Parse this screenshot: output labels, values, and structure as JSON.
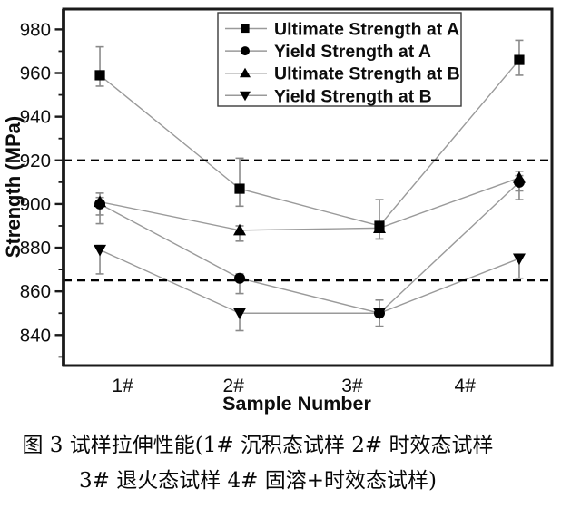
{
  "figure": {
    "caption_line1": "图 3  试样拉伸性能(1# 沉积态试样 2# 时效态试样",
    "caption_line2": "3# 退火态试样 4# 固溶+时效态试样)"
  },
  "chart_data": {
    "type": "line",
    "title": "",
    "xlabel": "Sample Number",
    "ylabel": "Strength (MPa)",
    "categories": [
      "1#",
      "2#",
      "3#",
      "4#"
    ],
    "x": [
      1,
      2,
      3,
      4
    ],
    "xlim": [
      0.74,
      4.234
    ],
    "ylim": [
      826,
      989.3
    ],
    "yticks": [
      840,
      860,
      880,
      900,
      920,
      940,
      960,
      980
    ],
    "y_minor_step": 10,
    "grid": false,
    "legend_position": "top-center-inside",
    "reference_lines": [
      {
        "value": 920,
        "style": "dashed",
        "color": "#000000"
      },
      {
        "value": 865,
        "style": "dashed",
        "color": "#000000"
      }
    ],
    "series": [
      {
        "name": "Ultimate Strength at A",
        "marker": "square",
        "values": [
          959,
          907,
          890,
          966
        ],
        "err_plus": [
          13,
          14,
          12,
          9
        ],
        "err_minus": [
          5,
          8,
          6,
          7
        ]
      },
      {
        "name": "Yield Strength at A",
        "marker": "circle",
        "values": [
          900,
          866,
          850,
          910
        ],
        "err_plus": [
          3,
          2,
          6,
          3
        ],
        "err_minus": [
          9,
          7,
          6,
          8
        ]
      },
      {
        "name": "Ultimate Strength at B",
        "marker": "triangle-up",
        "values": [
          901,
          888,
          889,
          912
        ],
        "err_plus": [
          4,
          2,
          2,
          3
        ],
        "err_minus": [
          6,
          5,
          5,
          6
        ]
      },
      {
        "name": "Yield Strength at B",
        "marker": "triangle-down",
        "values": [
          879,
          850,
          850,
          875
        ],
        "err_plus": [
          2,
          2,
          2,
          2
        ],
        "err_minus": [
          11,
          8,
          6,
          9
        ]
      }
    ],
    "colors": {
      "line": "#9a9a9a",
      "marker": "#000000",
      "error_bar": "#8a8a8a",
      "axis": "#1a1a1a",
      "background": "#ffffff"
    }
  }
}
